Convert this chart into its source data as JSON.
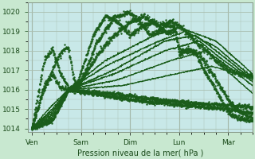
{
  "background_color": "#c8e8d0",
  "plot_bg_color": "#c8e8e8",
  "line_color": "#1a5c1a",
  "grid_color": "#99bbaa",
  "xlabel": "Pression niveau de la mer( hPa )",
  "ylim": [
    1013.8,
    1020.5
  ],
  "yticks": [
    1014,
    1015,
    1016,
    1017,
    1018,
    1019,
    1020
  ],
  "day_labels": [
    "Ven",
    "Sam",
    "Dim",
    "Lun",
    "Mar"
  ],
  "day_positions": [
    0,
    24,
    48,
    72,
    96
  ],
  "xlim": [
    -2,
    108
  ],
  "num_hours": 108
}
